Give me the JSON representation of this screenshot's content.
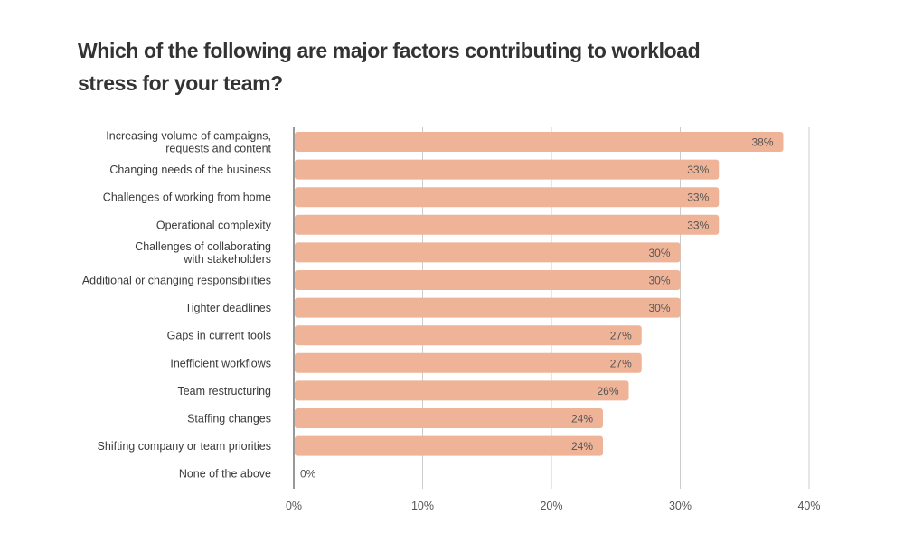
{
  "chart_data": {
    "type": "bar",
    "orientation": "horizontal",
    "title": "Which of the following are major factors contributing to workload stress for your team?",
    "categories": [
      [
        "Increasing volume of campaigns,",
        "requests and content"
      ],
      [
        "Changing needs of the business"
      ],
      [
        "Challenges of working from home"
      ],
      [
        "Operational complexity"
      ],
      [
        "Challenges of collaborating",
        "with stakeholders"
      ],
      [
        "Additional or changing responsibilities"
      ],
      [
        "Tighter deadlines"
      ],
      [
        "Gaps in current tools"
      ],
      [
        "Inefficient workflows"
      ],
      [
        "Team restructuring"
      ],
      [
        "Staffing changes"
      ],
      [
        "Shifting company or team priorities"
      ],
      [
        "None of the above"
      ]
    ],
    "values": [
      38,
      33,
      33,
      33,
      30,
      30,
      30,
      27,
      27,
      26,
      24,
      24,
      0
    ],
    "value_labels": [
      "38%",
      "33%",
      "33%",
      "33%",
      "30%",
      "30%",
      "30%",
      "27%",
      "27%",
      "26%",
      "24%",
      "24%",
      "0%"
    ],
    "xlim": [
      0,
      40
    ],
    "xticks": [
      0,
      10,
      20,
      30,
      40
    ],
    "xtick_labels": [
      "0%",
      "10%",
      "20%",
      "30%",
      "40%"
    ],
    "grid": "vertical",
    "legend": "none",
    "bar_color": "#efb497",
    "gridline_color": "#cccccc",
    "axis_color": "#555555"
  }
}
